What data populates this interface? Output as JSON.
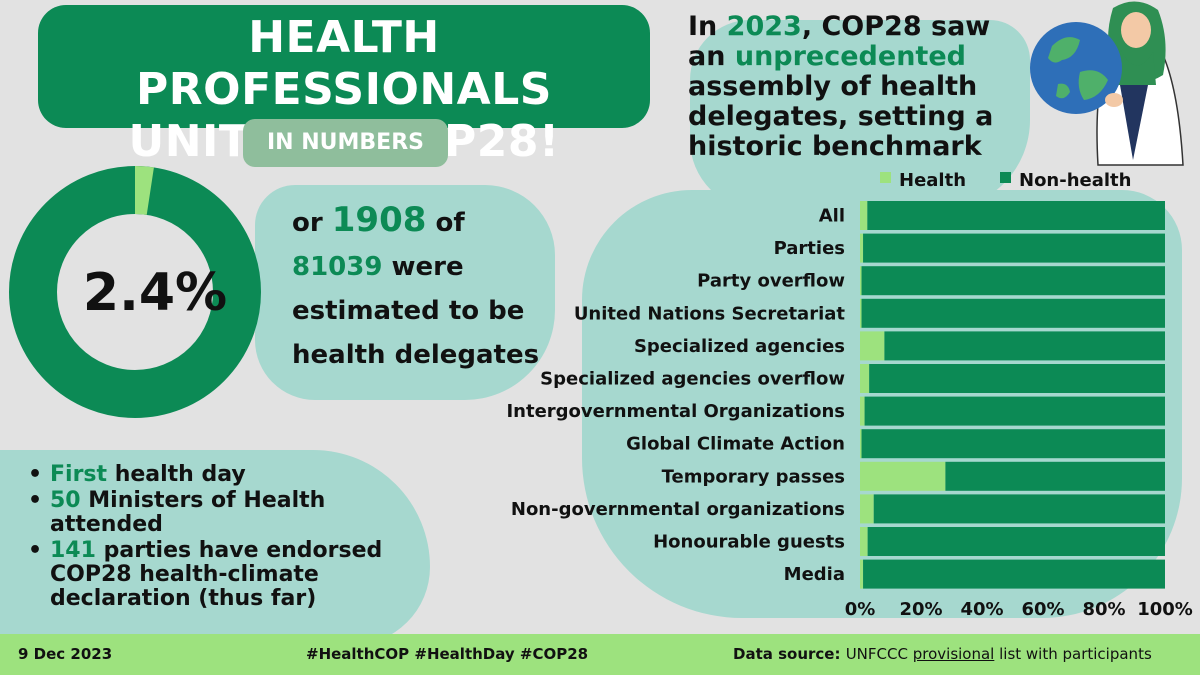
{
  "title": {
    "line1": "HEALTH PROFESSIONALS",
    "line2": "UNITE AT COP28!",
    "subtitle": "IN NUMBERS"
  },
  "heading": {
    "year": "2023",
    "part1": "In ",
    "part2": ", COP28 saw",
    "part3": "an ",
    "highlight": "unprecedented",
    "part4": "assembly of health delegates, setting a historic benchmark"
  },
  "stat": {
    "percent_label": "2.4%",
    "percent": 2.4,
    "or": "or",
    "count": "1908",
    "of": "of",
    "total": "81039",
    "rest1": "were",
    "rest2": "estimated to be health delegates"
  },
  "bullets": [
    {
      "highlight": "First",
      "text": " health day"
    },
    {
      "highlight": "50",
      "text": " Ministers of Health attended"
    },
    {
      "highlight": "141",
      "text": " parties have endorsed COP28 health-climate declaration (thus far)"
    }
  ],
  "footer": {
    "date": "9 Dec 2023",
    "hashtags": "#HealthCOP #HealthDay #COP28",
    "source_label": "Data source:",
    "source_pre": "UNFCCC ",
    "source_underlined": "provisional",
    "source_post": " list with participants"
  },
  "colors": {
    "health": "#9de27e",
    "non_health": "#0c8a55",
    "accent": "#0c8a55"
  },
  "chart_data": {
    "type": "bar",
    "orientation": "horizontal",
    "stacked": true,
    "percent_stacked": true,
    "categories": [
      "All",
      "Parties",
      "Party overflow",
      "United Nations Secretariat",
      "Specialized agencies",
      "Specialized agencies overflow",
      "Intergovernmental Organizations",
      "Global Climate Action",
      "Temporary passes",
      "Non-governmental organizations",
      "Honourable guests",
      "Media"
    ],
    "series": [
      {
        "name": "Health",
        "color": "#9de27e",
        "values": [
          2.4,
          1.0,
          0.5,
          0.5,
          8.0,
          3.0,
          1.5,
          0.5,
          28.0,
          4.5,
          2.5,
          1.0
        ]
      },
      {
        "name": "Non-health",
        "color": "#0c8a55",
        "values": [
          97.6,
          99.0,
          99.5,
          99.5,
          92.0,
          97.0,
          98.5,
          99.5,
          72.0,
          95.5,
          97.5,
          99.0
        ]
      }
    ],
    "x_ticks": [
      "0%",
      "20%",
      "40%",
      "60%",
      "80%",
      "100%"
    ],
    "xlim": [
      0,
      100
    ],
    "legend": "top-right",
    "grid": false
  }
}
